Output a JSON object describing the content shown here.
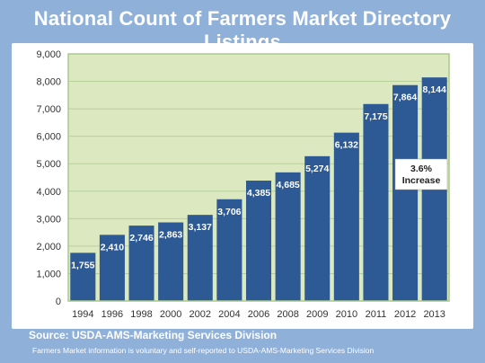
{
  "title": "National Count of Farmers Market Directory Listings",
  "source": "Source:  USDA-AMS-Marketing Services Division",
  "footnote": "Farmers Market information is voluntary and self-reported to USDA-AMS-Marketing Services Division",
  "chart_data": {
    "type": "bar",
    "categories": [
      "1994",
      "1996",
      "1998",
      "2000",
      "2002",
      "2004",
      "2006",
      "2008",
      "2009",
      "2010",
      "2011",
      "2012",
      "2013"
    ],
    "values": [
      1755,
      2410,
      2746,
      2863,
      3137,
      3706,
      4385,
      4685,
      5274,
      6132,
      7175,
      7864,
      8144
    ],
    "ylim": [
      0,
      9000
    ],
    "yticks": [
      0,
      1000,
      2000,
      3000,
      4000,
      5000,
      6000,
      7000,
      8000,
      9000
    ],
    "grid": true,
    "annotation": "3.6%\nIncrease",
    "colors": {
      "bar": "#2d5a94",
      "plot_bg": "#dce8c0",
      "frame": "#a9c98e",
      "grid": "#b8cf9c"
    }
  }
}
